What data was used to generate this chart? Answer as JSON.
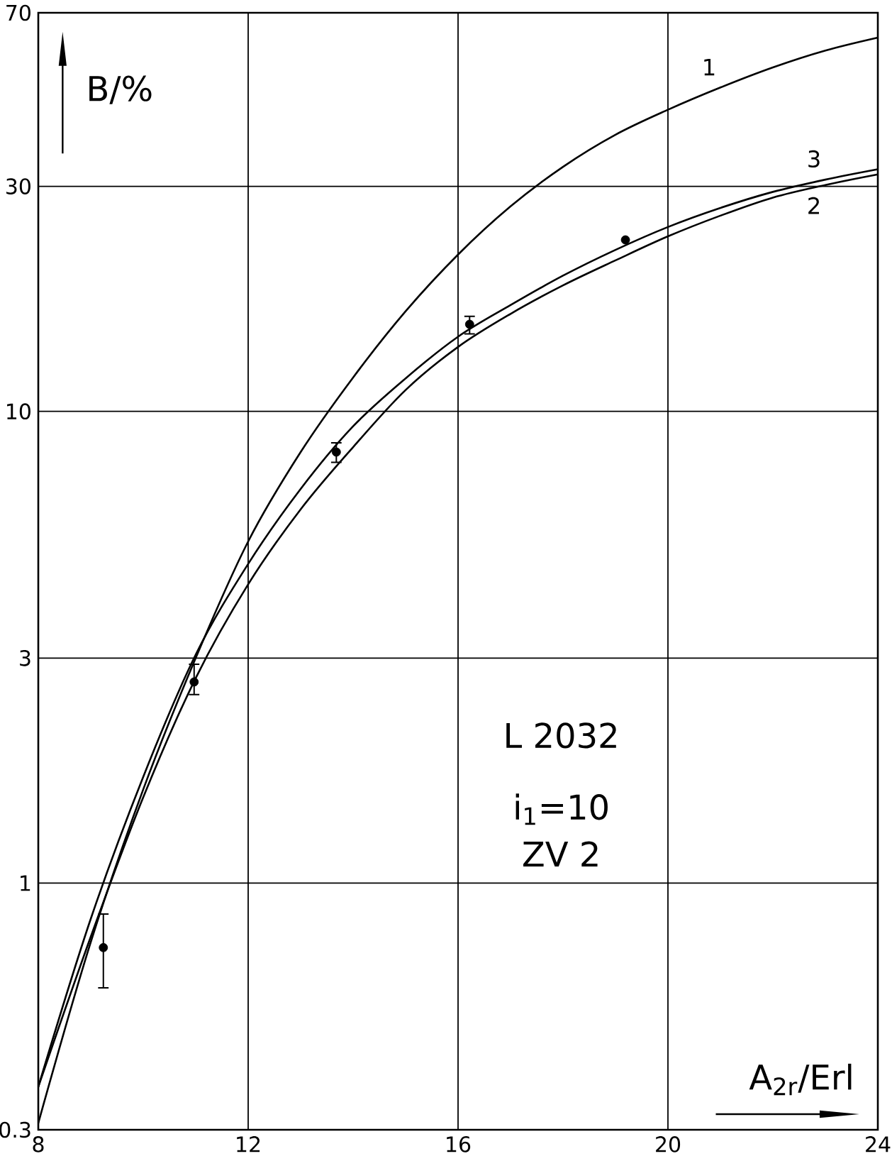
{
  "chart_data": {
    "type": "line",
    "xlabel": "A$_{2r}$/Erl",
    "ylabel": "B/%",
    "annotations": [
      "L 2032",
      "i$_{1}$=10",
      "ZV 2"
    ],
    "log": "y",
    "grid": true,
    "xlim": [
      8,
      24
    ],
    "ylim": [
      0.3,
      70
    ],
    "xticks": [
      8,
      12,
      16,
      20,
      24
    ],
    "yticks": [
      0.3,
      1,
      3,
      10,
      30,
      70
    ],
    "series": [
      {
        "name": "1",
        "color": "#000000",
        "x": [
          8,
          9,
          10,
          11,
          12,
          13,
          14,
          15,
          16,
          17,
          18,
          19,
          20,
          21,
          22,
          23,
          24
        ],
        "values": [
          0.31,
          0.75,
          1.58,
          3.0,
          5.3,
          8.2,
          11.8,
          16.3,
          21.5,
          27.2,
          33,
          38.6,
          43.6,
          48.6,
          53.6,
          58.2,
          62
        ]
      },
      {
        "name": "2",
        "color": "#000000",
        "x": [
          8,
          9,
          10,
          11,
          12,
          13,
          14,
          15,
          16,
          17,
          18,
          19,
          20,
          21,
          22,
          23,
          24
        ],
        "values": [
          0.37,
          0.77,
          1.52,
          2.72,
          4.3,
          6.2,
          8.4,
          11.1,
          13.7,
          16.1,
          18.5,
          20.9,
          23.5,
          26,
          28.4,
          30.2,
          31.8
        ]
      },
      {
        "name": "3",
        "color": "#000000",
        "x": [
          8,
          9,
          10,
          11,
          12,
          13,
          14,
          15,
          16,
          17,
          18,
          19,
          20,
          21,
          22,
          23,
          24
        ],
        "values": [
          0.37,
          0.84,
          1.68,
          3.05,
          4.75,
          6.85,
          9.3,
          11.75,
          14.4,
          16.8,
          19.4,
          22,
          24.6,
          27,
          29.2,
          31.0,
          32.6
        ]
      },
      {
        "type": "scatter",
        "color": "#000000",
        "marker": "circle",
        "x": [
          9.24,
          10.97,
          13.68,
          16.22,
          19.19
        ],
        "values": [
          0.73,
          2.67,
          8.2,
          15.3,
          23.1
        ],
        "errors": [
          [
            0.6,
            0.86
          ],
          [
            2.51,
            2.91
          ],
          [
            7.8,
            8.58
          ],
          [
            14.6,
            15.9
          ],
          null
        ]
      }
    ]
  }
}
